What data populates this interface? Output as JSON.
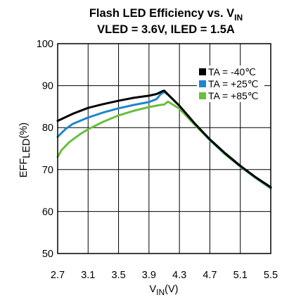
{
  "chart_data": {
    "type": "line",
    "title": {
      "line1_main": "Flash LED Efficiency vs. V",
      "line1_sub": "IN",
      "line2": "VLED = 3.6V, ILED = 1.5A"
    },
    "xlabel": {
      "main": "V",
      "sub": "IN",
      "rest": "(V)"
    },
    "ylabel": {
      "main": "EFF",
      "sub": "LED",
      "rest": "(%)"
    },
    "xlim": [
      2.7,
      5.5
    ],
    "ylim": [
      50,
      100
    ],
    "x_ticks": [
      "2.7",
      "3.1",
      "3.5",
      "3.9",
      "4.3",
      "4.7",
      "5.1",
      "5.5"
    ],
    "y_ticks": [
      "50",
      "60",
      "70",
      "80",
      "90",
      "100"
    ],
    "grid": true,
    "legend_position": "top-right",
    "series": [
      {
        "name": "TA = -40℃",
        "color": "#000000",
        "points": [
          [
            2.7,
            81.6
          ],
          [
            2.9,
            83.3
          ],
          [
            3.1,
            84.7
          ],
          [
            3.3,
            85.6
          ],
          [
            3.5,
            86.4
          ],
          [
            3.7,
            87.1
          ],
          [
            3.9,
            87.6
          ],
          [
            4.0,
            88.0
          ],
          [
            4.08,
            88.7
          ],
          [
            4.1,
            88.8
          ],
          [
            4.15,
            87.9
          ],
          [
            4.3,
            85.2
          ],
          [
            4.5,
            81.0
          ],
          [
            4.7,
            77.2
          ],
          [
            4.9,
            73.9
          ],
          [
            5.1,
            70.9
          ],
          [
            5.3,
            68.2
          ],
          [
            5.5,
            65.8
          ]
        ]
      },
      {
        "name": "TA = +25℃",
        "color": "#1f86c9",
        "points": [
          [
            2.7,
            77.8
          ],
          [
            2.8,
            79.6
          ],
          [
            2.9,
            80.9
          ],
          [
            3.1,
            82.4
          ],
          [
            3.3,
            83.6
          ],
          [
            3.5,
            84.6
          ],
          [
            3.7,
            85.4
          ],
          [
            3.9,
            86.1
          ],
          [
            4.0,
            86.8
          ],
          [
            4.05,
            87.9
          ],
          [
            4.1,
            88.5
          ],
          [
            4.15,
            87.8
          ],
          [
            4.3,
            85.2
          ],
          [
            4.5,
            81.0
          ],
          [
            4.7,
            77.1
          ],
          [
            4.9,
            73.8
          ],
          [
            5.1,
            70.8
          ],
          [
            5.3,
            68.1
          ],
          [
            5.5,
            65.7
          ]
        ]
      },
      {
        "name": "TA = +85℃",
        "color": "#6abf3c",
        "points": [
          [
            2.7,
            73.0
          ],
          [
            2.75,
            74.6
          ],
          [
            2.85,
            76.5
          ],
          [
            3.0,
            78.5
          ],
          [
            3.1,
            79.6
          ],
          [
            3.3,
            81.4
          ],
          [
            3.5,
            82.9
          ],
          [
            3.7,
            84.0
          ],
          [
            3.9,
            84.9
          ],
          [
            4.05,
            85.4
          ],
          [
            4.1,
            85.5
          ],
          [
            4.15,
            86.2
          ],
          [
            4.3,
            84.5
          ],
          [
            4.5,
            80.7
          ],
          [
            4.7,
            77.0
          ],
          [
            4.9,
            73.6
          ],
          [
            5.1,
            70.7
          ],
          [
            5.3,
            68.0
          ],
          [
            5.5,
            65.5
          ]
        ]
      }
    ]
  }
}
